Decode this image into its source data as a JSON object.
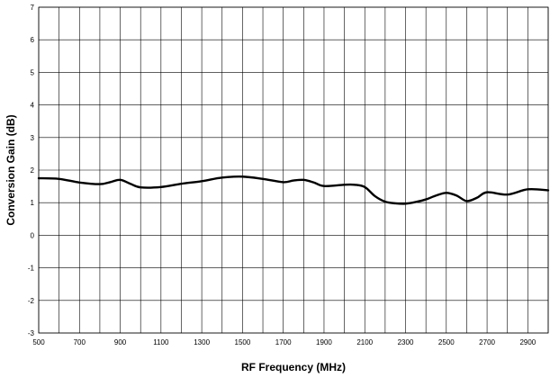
{
  "chart_data": {
    "type": "line",
    "title": "",
    "xlabel": "RF Frequency (MHz)",
    "ylabel": "Conversion Gain (dB)",
    "xlim": [
      500,
      3000
    ],
    "ylim": [
      -3,
      7
    ],
    "x_ticks": [
      500,
      700,
      900,
      1100,
      1300,
      1500,
      1700,
      1900,
      2100,
      2300,
      2500,
      2700,
      2900
    ],
    "y_ticks": [
      -3,
      -2,
      -1,
      0,
      1,
      2,
      3,
      4,
      5,
      6,
      7
    ],
    "x_gridlines": [
      500,
      600,
      700,
      800,
      900,
      1000,
      1100,
      1200,
      1300,
      1400,
      1500,
      1600,
      1700,
      1800,
      1900,
      2000,
      2100,
      2200,
      2300,
      2400,
      2500,
      2600,
      2700,
      2800,
      2900,
      3000
    ],
    "grid": true,
    "legend": "none",
    "line_color": "#000000",
    "series": [
      {
        "x": [
          500,
          600,
          700,
          800,
          850,
          900,
          950,
          1000,
          1100,
          1200,
          1300,
          1400,
          1500,
          1600,
          1700,
          1750,
          1800,
          1850,
          1900,
          2000,
          2050,
          2100,
          2150,
          2200,
          2250,
          2300,
          2350,
          2400,
          2450,
          2500,
          2550,
          2600,
          2650,
          2700,
          2800,
          2900,
          3000
        ],
        "values": [
          1.75,
          1.73,
          1.62,
          1.57,
          1.63,
          1.7,
          1.58,
          1.47,
          1.48,
          1.58,
          1.66,
          1.77,
          1.8,
          1.73,
          1.63,
          1.68,
          1.7,
          1.62,
          1.51,
          1.55,
          1.55,
          1.48,
          1.2,
          1.03,
          0.98,
          0.97,
          1.02,
          1.1,
          1.22,
          1.3,
          1.22,
          1.05,
          1.15,
          1.32,
          1.25,
          1.41,
          1.38
        ]
      }
    ]
  }
}
